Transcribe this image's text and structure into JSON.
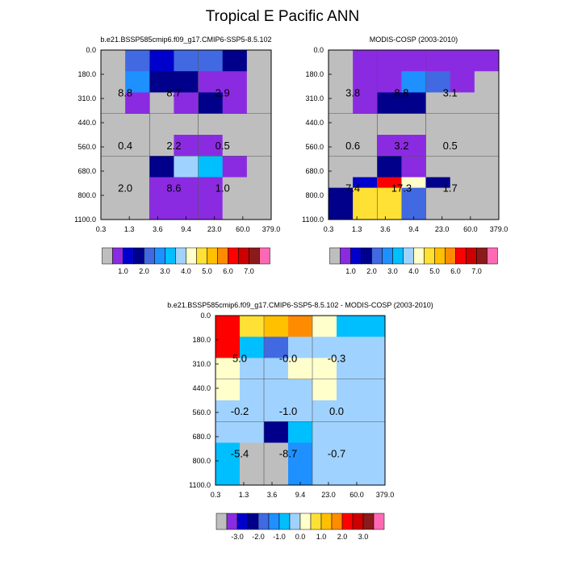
{
  "title": "Tropical E Pacific ANN",
  "chart_data": [
    {
      "type": "heatmap",
      "title": "b.e21.BSSP585cmip6.f09_g17.CMIP6-SSP5-8.5.102",
      "x_ticks": [
        "0.3",
        "1.3",
        "3.6",
        "9.4",
        "23.0",
        "60.0",
        "379.0"
      ],
      "y_ticks": [
        "0.0",
        "180.0",
        "310.0",
        "440.0",
        "560.0",
        "680.0",
        "800.0",
        "1100.0"
      ],
      "colors": [
        [
          "#bebebe",
          "#4169e1",
          "#0000cd",
          "#4169e1",
          "#4169e1",
          "#00008b",
          "#bebebe"
        ],
        [
          "#bebebe",
          "#1e90ff",
          "#00008b",
          "#00008b",
          "#8a2be2",
          "#8a2be2",
          "#bebebe"
        ],
        [
          "#bebebe",
          "#8a2be2",
          "#bebebe",
          "#8a2be2",
          "#00008b",
          "#8a2be2",
          "#bebebe"
        ],
        [
          "#bebebe",
          "#bebebe",
          "#bebebe",
          "#bebebe",
          "#bebebe",
          "#bebebe",
          "#bebebe"
        ],
        [
          "#bebebe",
          "#bebebe",
          "#bebebe",
          "#8a2be2",
          "#8a2be2",
          "#bebebe",
          "#bebebe"
        ],
        [
          "#bebebe",
          "#bebebe",
          "#00008b",
          "#a0d2ff",
          "#00bfff",
          "#8a2be2",
          "#bebebe"
        ],
        [
          "#bebebe",
          "#bebebe",
          "#8a2be2",
          "#8a2be2",
          "#8a2be2",
          "#bebebe",
          "#bebebe"
        ]
      ],
      "labels": [
        {
          "col": 0.5,
          "row": 1.5,
          "text": "8.8"
        },
        {
          "col": 2.5,
          "row": 1.5,
          "text": "8.7"
        },
        {
          "col": 4.5,
          "row": 1.5,
          "text": "2.9"
        },
        {
          "col": 0.5,
          "row": 4.0,
          "text": "0.4"
        },
        {
          "col": 2.5,
          "row": 4.0,
          "text": "2.2"
        },
        {
          "col": 4.5,
          "row": 4.0,
          "text": "0.5"
        },
        {
          "col": 0.5,
          "row": 6.0,
          "text": "2.0"
        },
        {
          "col": 2.5,
          "row": 6.0,
          "text": "8.6"
        },
        {
          "col": 4.5,
          "row": 6.0,
          "text": "1.0"
        }
      ],
      "colorbar": {
        "colors": [
          "#bebebe",
          "#8a2be2",
          "#0000cd",
          "#00008b",
          "#4169e1",
          "#1e90ff",
          "#00bfff",
          "#a0d2ff",
          "#ffffcc",
          "#ffe135",
          "#ffc000",
          "#ff8c00",
          "#ff0000",
          "#cd0000",
          "#8b1a1a",
          "#ff69b4"
        ],
        "labels": [
          {
            "after": 2,
            "text": "1.0"
          },
          {
            "after": 4,
            "text": "2.0"
          },
          {
            "after": 6,
            "text": "3.0"
          },
          {
            "after": 8,
            "text": "4.0"
          },
          {
            "after": 10,
            "text": "5.0"
          },
          {
            "after": 12,
            "text": "6.0"
          },
          {
            "after": 14,
            "text": "7.0"
          }
        ]
      }
    },
    {
      "type": "heatmap",
      "title": "MODIS-COSP (2003-2010)",
      "x_ticks": [
        "0.3",
        "1.3",
        "3.6",
        "9.4",
        "23.0",
        "60.0",
        "379.0"
      ],
      "y_ticks": [
        "0.0",
        "180.0",
        "310.0",
        "440.0",
        "560.0",
        "680.0",
        "800.0",
        "1100.0"
      ],
      "colors": [
        [
          "#bebebe",
          "#8a2be2",
          "#8a2be2",
          "#8a2be2",
          "#8a2be2",
          "#8a2be2",
          "#8a2be2"
        ],
        [
          "#bebebe",
          "#8a2be2",
          "#8a2be2",
          "#1e90ff",
          "#4169e1",
          "#8a2be2",
          "#bebebe"
        ],
        [
          "#bebebe",
          "#8a2be2",
          "#00008b",
          "#00008b",
          "#bebebe",
          "#bebebe",
          "#bebebe"
        ],
        [
          "#bebebe",
          "#bebebe",
          "#bebebe",
          "#bebebe",
          "#bebebe",
          "#bebebe",
          "#bebebe"
        ],
        [
          "#bebebe",
          "#bebebe",
          "#8a2be2",
          "#8a2be2",
          "#bebebe",
          "#bebebe",
          "#bebebe"
        ],
        [
          "#bebebe",
          "#bebebe",
          "#00008b",
          "#8a2be2",
          "#bebebe",
          "#bebebe",
          "#bebebe"
        ],
        [
          "#bebebe",
          "#0000cd",
          "#ff0000",
          "#ffffcc",
          "#00008b",
          "#bebebe",
          "#bebebe"
        ]
      ],
      "bottom_row": [
        "#00008b",
        "#ffe135",
        "#ffe135",
        "#4169e1",
        "#bebebe",
        "#bebebe",
        "#bebebe"
      ],
      "labels": [
        {
          "col": 0.5,
          "row": 1.5,
          "text": "3.8"
        },
        {
          "col": 2.5,
          "row": 1.5,
          "text": "8.8"
        },
        {
          "col": 4.5,
          "row": 1.5,
          "text": "3.1"
        },
        {
          "col": 0.5,
          "row": 4.0,
          "text": "0.6"
        },
        {
          "col": 2.5,
          "row": 4.0,
          "text": "3.2"
        },
        {
          "col": 4.5,
          "row": 4.0,
          "text": "0.5"
        },
        {
          "col": 0.5,
          "row": 6.0,
          "text": "7.4"
        },
        {
          "col": 2.5,
          "row": 6.0,
          "text": "17.3"
        },
        {
          "col": 4.5,
          "row": 6.0,
          "text": "1.7"
        }
      ],
      "colorbar": {
        "colors": [
          "#bebebe",
          "#8a2be2",
          "#0000cd",
          "#00008b",
          "#4169e1",
          "#1e90ff",
          "#00bfff",
          "#a0d2ff",
          "#ffffcc",
          "#ffe135",
          "#ffc000",
          "#ff8c00",
          "#ff0000",
          "#cd0000",
          "#8b1a1a",
          "#ff69b4"
        ],
        "labels": [
          {
            "after": 2,
            "text": "1.0"
          },
          {
            "after": 4,
            "text": "2.0"
          },
          {
            "after": 6,
            "text": "3.0"
          },
          {
            "after": 8,
            "text": "4.0"
          },
          {
            "after": 10,
            "text": "5.0"
          },
          {
            "after": 12,
            "text": "6.0"
          },
          {
            "after": 14,
            "text": "7.0"
          }
        ]
      }
    },
    {
      "type": "heatmap",
      "title": "b.e21.BSSP585cmip6.f09_g17.CMIP6-SSP5-8.5.102 - MODIS-COSP (2003-2010)",
      "x_ticks": [
        "0.3",
        "1.3",
        "3.6",
        "9.4",
        "23.0",
        "60.0",
        "379.0"
      ],
      "y_ticks": [
        "0.0",
        "180.0",
        "310.0",
        "440.0",
        "560.0",
        "680.0",
        "800.0",
        "1100.0"
      ],
      "colors": [
        [
          "#ff0000",
          "#ffe135",
          "#ffc000",
          "#ff8c00",
          "#ffffcc",
          "#00bfff",
          "#00bfff"
        ],
        [
          "#ff0000",
          "#00bfff",
          "#4169e1",
          "#a0d2ff",
          "#a0d2ff",
          "#a0d2ff",
          "#a0d2ff"
        ],
        [
          "#ffffcc",
          "#a0d2ff",
          "#a0d2ff",
          "#ffffcc",
          "#ffffcc",
          "#a0d2ff",
          "#a0d2ff"
        ],
        [
          "#ffffcc",
          "#a0d2ff",
          "#a0d2ff",
          "#a0d2ff",
          "#ffffcc",
          "#a0d2ff",
          "#a0d2ff"
        ],
        [
          "#a0d2ff",
          "#a0d2ff",
          "#a0d2ff",
          "#a0d2ff",
          "#a0d2ff",
          "#a0d2ff",
          "#a0d2ff"
        ],
        [
          "#a0d2ff",
          "#a0d2ff",
          "#00008b",
          "#00bfff",
          "#a0d2ff",
          "#a0d2ff",
          "#a0d2ff"
        ],
        [
          "#00bfff",
          "#bebebe",
          "#bebebe",
          "#1e90ff",
          "#a0d2ff",
          "#a0d2ff",
          "#a0d2ff"
        ]
      ],
      "labels": [
        {
          "col": 0.5,
          "row": 1.5,
          "text": "5.0"
        },
        {
          "col": 2.5,
          "row": 1.5,
          "text": "-0.0"
        },
        {
          "col": 4.5,
          "row": 1.5,
          "text": "-0.3"
        },
        {
          "col": 0.5,
          "row": 4.0,
          "text": "-0.2"
        },
        {
          "col": 2.5,
          "row": 4.0,
          "text": "-1.0"
        },
        {
          "col": 4.5,
          "row": 4.0,
          "text": "0.0"
        },
        {
          "col": 0.5,
          "row": 6.0,
          "text": "-5.4"
        },
        {
          "col": 2.5,
          "row": 6.0,
          "text": "-8.7"
        },
        {
          "col": 4.5,
          "row": 6.0,
          "text": "-0.7"
        }
      ],
      "colorbar": {
        "colors": [
          "#bebebe",
          "#8a2be2",
          "#0000cd",
          "#00008b",
          "#4169e1",
          "#1e90ff",
          "#00bfff",
          "#a0d2ff",
          "#ffffcc",
          "#ffe135",
          "#ffc000",
          "#ff8c00",
          "#ff0000",
          "#cd0000",
          "#8b1a1a",
          "#ff69b4"
        ],
        "labels": [
          {
            "after": 2,
            "text": "-3.0"
          },
          {
            "after": 4,
            "text": "-2.0"
          },
          {
            "after": 6,
            "text": "-1.0"
          },
          {
            "after": 8,
            "text": "0.0"
          },
          {
            "after": 10,
            "text": "1.0"
          },
          {
            "after": 12,
            "text": "2.0"
          },
          {
            "after": 14,
            "text": "3.0"
          }
        ]
      }
    }
  ]
}
